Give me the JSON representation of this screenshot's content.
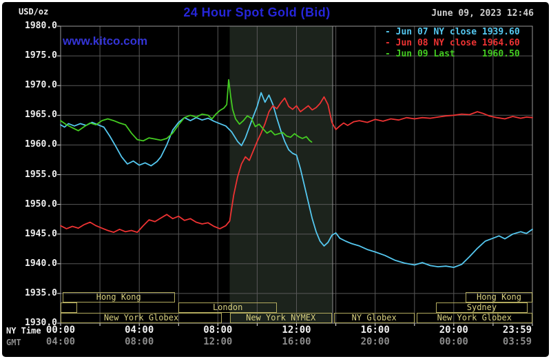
{
  "header": {
    "units": "USD/oz",
    "title": "24 Hour Spot Gold (Bid)",
    "datetime": "June 09, 2023 12:46",
    "watermark": "www.kitco.com"
  },
  "legend": [
    {
      "id": "jun07",
      "label": "- Jun 07 NY close 1939.60",
      "color": "#55c8f0"
    },
    {
      "id": "jun08",
      "label": "- Jun 08 NY close 1964.60",
      "color": "#ee3333"
    },
    {
      "id": "jun09",
      "label": "- Jun 09 Last     1960.50",
      "color": "#44cc22"
    }
  ],
  "axes": {
    "ny_time_label": "NY Time",
    "gmt_label": "GMT",
    "y_ticks": [
      "1980.0",
      "1975.0",
      "1970.0",
      "1965.0",
      "1960.0",
      "1955.0",
      "1950.0",
      "1945.0",
      "1940.0",
      "1935.0",
      "1930.0"
    ],
    "ny_ticks": [
      "00:00",
      "04:00",
      "08:00",
      "12:00",
      "16:00",
      "20:00",
      "23:59"
    ],
    "gmt_ticks": [
      "04:00",
      "08:00",
      "12:00",
      "16:00",
      "20:00",
      "00:00",
      "03:59"
    ]
  },
  "colors": {
    "title": "#2626d9",
    "watermark": "#3434d6",
    "grid": "#585858",
    "border": "#9a9a9a",
    "band": "#1c231c",
    "band_edge": "#8f8f8f",
    "session_border": "#b3ab5e",
    "session_text": "#d8d080",
    "axis_text": "#f0f0f0",
    "gmt_text": "#8a8a8a",
    "datetime_text": "#cfcfcf"
  },
  "sessions": [
    {
      "row": 0,
      "x0h": 0.1,
      "x1h": 5.8,
      "label": "Hong Kong"
    },
    {
      "row": 0,
      "x0h": 20.6,
      "x1h": 24.0,
      "label": "Hong Kong"
    },
    {
      "row": 1,
      "x0h": 0.0,
      "x1h": 0.85,
      "label": ""
    },
    {
      "row": 1,
      "x0h": 6.0,
      "x1h": 11.0,
      "label": "London"
    },
    {
      "row": 1,
      "x0h": 19.1,
      "x1h": 23.75,
      "label": "Sydney"
    },
    {
      "row": 2,
      "x0h": 0.0,
      "x1h": 8.2,
      "label": "New York Globex"
    },
    {
      "row": 2,
      "x0h": 8.6,
      "x1h": 13.8,
      "label": "New York NYMEX"
    },
    {
      "row": 2,
      "x0h": 13.9,
      "x1h": 18.0,
      "label": "NY Globex"
    },
    {
      "row": 2,
      "x0h": 18.1,
      "x1h": 24.0,
      "label": "New York Globex"
    }
  ],
  "chart_data": {
    "type": "line",
    "title": "24 Hour Spot Gold (Bid)",
    "xlabel": "NY Time (hours 00:00-23:59)",
    "ylabel": "USD/oz",
    "xlim": [
      0,
      24
    ],
    "ylim": [
      1930,
      1980
    ],
    "grid": true,
    "legend_position": "top-right",
    "shaded_region": {
      "x0": 8.6,
      "x1": 13.84,
      "meaning": "New York NYMEX session"
    },
    "series": [
      {
        "id": "jun07",
        "name": "Jun 07",
        "close_label": "NY close 1939.60",
        "color": "#55c8f0",
        "points": [
          [
            0,
            1963.4
          ],
          [
            0.2,
            1963.0
          ],
          [
            0.4,
            1963.6
          ],
          [
            0.7,
            1963.2
          ],
          [
            1.0,
            1963.6
          ],
          [
            1.3,
            1963.3
          ],
          [
            1.6,
            1963.8
          ],
          [
            1.9,
            1963.4
          ],
          [
            2.2,
            1963.0
          ],
          [
            2.5,
            1961.5
          ],
          [
            2.8,
            1959.8
          ],
          [
            3.1,
            1958.0
          ],
          [
            3.4,
            1956.8
          ],
          [
            3.7,
            1957.3
          ],
          [
            4.0,
            1956.6
          ],
          [
            4.3,
            1957.0
          ],
          [
            4.6,
            1956.5
          ],
          [
            4.9,
            1957.2
          ],
          [
            5.1,
            1958.0
          ],
          [
            5.4,
            1960.0
          ],
          [
            5.7,
            1962.5
          ],
          [
            6.0,
            1963.8
          ],
          [
            6.3,
            1964.6
          ],
          [
            6.6,
            1964.1
          ],
          [
            6.9,
            1964.6
          ],
          [
            7.2,
            1964.2
          ],
          [
            7.5,
            1964.5
          ],
          [
            7.8,
            1964.0
          ],
          [
            8.1,
            1963.6
          ],
          [
            8.4,
            1963.2
          ],
          [
            8.7,
            1962.2
          ],
          [
            9.0,
            1960.6
          ],
          [
            9.2,
            1959.9
          ],
          [
            9.4,
            1961.2
          ],
          [
            9.6,
            1963.0
          ],
          [
            9.8,
            1964.8
          ],
          [
            10.0,
            1966.5
          ],
          [
            10.2,
            1968.8
          ],
          [
            10.4,
            1967.2
          ],
          [
            10.6,
            1968.4
          ],
          [
            10.8,
            1966.8
          ],
          [
            11.0,
            1964.5
          ],
          [
            11.2,
            1962.4
          ],
          [
            11.4,
            1960.6
          ],
          [
            11.6,
            1959.2
          ],
          [
            11.8,
            1958.6
          ],
          [
            12.0,
            1958.3
          ],
          [
            12.2,
            1956.0
          ],
          [
            12.4,
            1953.2
          ],
          [
            12.6,
            1950.4
          ],
          [
            12.8,
            1947.6
          ],
          [
            13.0,
            1945.4
          ],
          [
            13.2,
            1943.8
          ],
          [
            13.4,
            1943.0
          ],
          [
            13.6,
            1943.6
          ],
          [
            13.8,
            1944.8
          ],
          [
            14.0,
            1945.2
          ],
          [
            14.2,
            1944.3
          ],
          [
            14.5,
            1943.8
          ],
          [
            14.8,
            1943.4
          ],
          [
            15.2,
            1943.0
          ],
          [
            15.6,
            1942.4
          ],
          [
            16.0,
            1942.0
          ],
          [
            16.5,
            1941.4
          ],
          [
            17.0,
            1940.6
          ],
          [
            17.5,
            1940.1
          ],
          [
            18.0,
            1939.8
          ],
          [
            18.4,
            1940.2
          ],
          [
            18.8,
            1939.7
          ],
          [
            19.2,
            1939.5
          ],
          [
            19.6,
            1939.6
          ],
          [
            20.0,
            1939.4
          ],
          [
            20.4,
            1939.9
          ],
          [
            20.8,
            1941.2
          ],
          [
            21.2,
            1942.6
          ],
          [
            21.6,
            1943.8
          ],
          [
            22.0,
            1944.3
          ],
          [
            22.3,
            1944.7
          ],
          [
            22.6,
            1944.2
          ],
          [
            23.0,
            1945.0
          ],
          [
            23.4,
            1945.4
          ],
          [
            23.7,
            1945.1
          ],
          [
            24,
            1945.8
          ]
        ]
      },
      {
        "id": "jun08",
        "name": "Jun 08",
        "close_label": "NY close 1964.60",
        "color": "#ee3333",
        "points": [
          [
            0,
            1946.4
          ],
          [
            0.3,
            1945.9
          ],
          [
            0.6,
            1946.3
          ],
          [
            0.9,
            1946.0
          ],
          [
            1.2,
            1946.6
          ],
          [
            1.5,
            1947.0
          ],
          [
            1.8,
            1946.4
          ],
          [
            2.1,
            1946.0
          ],
          [
            2.4,
            1945.6
          ],
          [
            2.7,
            1945.3
          ],
          [
            3.0,
            1945.8
          ],
          [
            3.3,
            1945.4
          ],
          [
            3.6,
            1945.6
          ],
          [
            3.9,
            1945.3
          ],
          [
            4.2,
            1946.4
          ],
          [
            4.5,
            1947.4
          ],
          [
            4.8,
            1947.1
          ],
          [
            5.1,
            1947.7
          ],
          [
            5.4,
            1948.3
          ],
          [
            5.7,
            1947.6
          ],
          [
            6.0,
            1948.0
          ],
          [
            6.3,
            1947.3
          ],
          [
            6.6,
            1947.6
          ],
          [
            6.9,
            1947.0
          ],
          [
            7.2,
            1946.7
          ],
          [
            7.5,
            1946.9
          ],
          [
            7.8,
            1946.3
          ],
          [
            8.1,
            1945.9
          ],
          [
            8.4,
            1946.4
          ],
          [
            8.6,
            1947.2
          ],
          [
            8.8,
            1951.5
          ],
          [
            9.0,
            1954.6
          ],
          [
            9.2,
            1956.8
          ],
          [
            9.4,
            1958.0
          ],
          [
            9.6,
            1957.4
          ],
          [
            9.8,
            1959.0
          ],
          [
            10.0,
            1960.6
          ],
          [
            10.2,
            1962.0
          ],
          [
            10.4,
            1963.6
          ],
          [
            10.6,
            1965.6
          ],
          [
            10.8,
            1966.6
          ],
          [
            11.0,
            1966.1
          ],
          [
            11.2,
            1967.1
          ],
          [
            11.4,
            1967.9
          ],
          [
            11.6,
            1966.5
          ],
          [
            11.8,
            1966.0
          ],
          [
            12.0,
            1966.6
          ],
          [
            12.2,
            1965.6
          ],
          [
            12.4,
            1966.1
          ],
          [
            12.6,
            1966.6
          ],
          [
            12.8,
            1965.9
          ],
          [
            13.0,
            1966.3
          ],
          [
            13.2,
            1967.0
          ],
          [
            13.4,
            1968.1
          ],
          [
            13.6,
            1966.8
          ],
          [
            13.8,
            1963.8
          ],
          [
            14.0,
            1962.6
          ],
          [
            14.2,
            1963.2
          ],
          [
            14.4,
            1963.7
          ],
          [
            14.6,
            1963.3
          ],
          [
            14.9,
            1963.9
          ],
          [
            15.2,
            1964.1
          ],
          [
            15.6,
            1963.8
          ],
          [
            16.0,
            1964.3
          ],
          [
            16.4,
            1964.0
          ],
          [
            16.8,
            1964.4
          ],
          [
            17.2,
            1964.2
          ],
          [
            17.6,
            1964.6
          ],
          [
            18.0,
            1964.4
          ],
          [
            18.4,
            1964.6
          ],
          [
            18.8,
            1964.5
          ],
          [
            19.2,
            1964.7
          ],
          [
            19.6,
            1964.9
          ],
          [
            20.0,
            1965.0
          ],
          [
            20.4,
            1965.2
          ],
          [
            20.8,
            1965.1
          ],
          [
            21.2,
            1965.6
          ],
          [
            21.5,
            1965.3
          ],
          [
            21.8,
            1964.9
          ],
          [
            22.2,
            1964.6
          ],
          [
            22.6,
            1964.4
          ],
          [
            23.0,
            1964.8
          ],
          [
            23.4,
            1964.5
          ],
          [
            23.7,
            1964.7
          ],
          [
            24,
            1964.6
          ]
        ]
      },
      {
        "id": "jun09",
        "name": "Jun 09",
        "close_label": "Last 1960.50",
        "color": "#44cc22",
        "points": [
          [
            0,
            1964.1
          ],
          [
            0.3,
            1963.4
          ],
          [
            0.6,
            1962.9
          ],
          [
            0.9,
            1962.4
          ],
          [
            1.2,
            1963.1
          ],
          [
            1.5,
            1963.7
          ],
          [
            1.8,
            1963.4
          ],
          [
            2.1,
            1964.1
          ],
          [
            2.4,
            1964.4
          ],
          [
            2.7,
            1964.1
          ],
          [
            3.0,
            1963.7
          ],
          [
            3.3,
            1963.4
          ],
          [
            3.6,
            1962.0
          ],
          [
            3.9,
            1960.9
          ],
          [
            4.2,
            1960.7
          ],
          [
            4.5,
            1961.2
          ],
          [
            4.8,
            1961.0
          ],
          [
            5.1,
            1960.8
          ],
          [
            5.4,
            1961.1
          ],
          [
            5.7,
            1962.0
          ],
          [
            6.0,
            1963.4
          ],
          [
            6.3,
            1964.6
          ],
          [
            6.6,
            1965.0
          ],
          [
            6.9,
            1964.7
          ],
          [
            7.2,
            1965.2
          ],
          [
            7.5,
            1965.0
          ],
          [
            7.7,
            1964.4
          ],
          [
            7.9,
            1965.2
          ],
          [
            8.1,
            1965.8
          ],
          [
            8.3,
            1966.2
          ],
          [
            8.45,
            1966.8
          ],
          [
            8.55,
            1971.0
          ],
          [
            8.65,
            1968.2
          ],
          [
            8.75,
            1966.0
          ],
          [
            8.9,
            1964.4
          ],
          [
            9.1,
            1963.5
          ],
          [
            9.3,
            1964.1
          ],
          [
            9.5,
            1964.9
          ],
          [
            9.7,
            1964.5
          ],
          [
            9.9,
            1963.1
          ],
          [
            10.1,
            1963.5
          ],
          [
            10.3,
            1962.7
          ],
          [
            10.5,
            1962.0
          ],
          [
            10.7,
            1962.4
          ],
          [
            10.9,
            1961.7
          ],
          [
            11.1,
            1961.9
          ],
          [
            11.3,
            1962.1
          ],
          [
            11.5,
            1961.5
          ],
          [
            11.7,
            1961.3
          ],
          [
            11.9,
            1961.9
          ],
          [
            12.1,
            1961.4
          ],
          [
            12.3,
            1961.1
          ],
          [
            12.5,
            1961.4
          ],
          [
            12.65,
            1960.8
          ],
          [
            12.77,
            1960.5
          ]
        ]
      }
    ]
  }
}
